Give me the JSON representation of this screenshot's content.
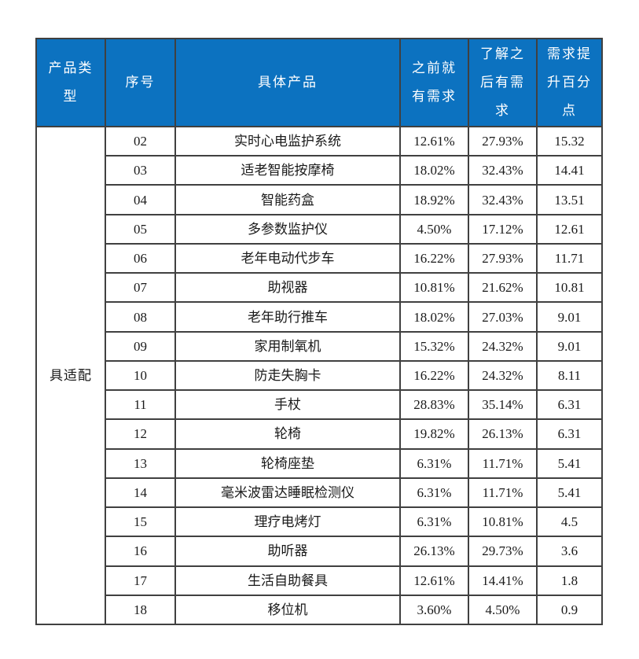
{
  "document": {
    "type": "survey-demand-table",
    "background": "#ffffff"
  },
  "table": {
    "columns": [
      {
        "key": "category",
        "label": "产品类\n型"
      },
      {
        "key": "no",
        "label": "序号"
      },
      {
        "key": "product",
        "label": "具体产品"
      },
      {
        "key": "before",
        "label": "之前就\n有需求"
      },
      {
        "key": "after",
        "label": "了解之\n后有需\n求"
      },
      {
        "key": "lift",
        "label": "需求提\n升百分\n点"
      }
    ],
    "category_label": "具适配",
    "rows": [
      {
        "no": "02",
        "product": "实时心电监护系统",
        "before": "12.61%",
        "after": "27.93%",
        "lift": "15.32"
      },
      {
        "no": "03",
        "product": "适老智能按摩椅",
        "before": "18.02%",
        "after": "32.43%",
        "lift": "14.41"
      },
      {
        "no": "04",
        "product": "智能药盒",
        "before": "18.92%",
        "after": "32.43%",
        "lift": "13.51"
      },
      {
        "no": "05",
        "product": "多参数监护仪",
        "before": "4.50%",
        "after": "17.12%",
        "lift": "12.61"
      },
      {
        "no": "06",
        "product": "老年电动代步车",
        "before": "16.22%",
        "after": "27.93%",
        "lift": "11.71"
      },
      {
        "no": "07",
        "product": "助视器",
        "before": "10.81%",
        "after": "21.62%",
        "lift": "10.81"
      },
      {
        "no": "08",
        "product": "老年助行推车",
        "before": "18.02%",
        "after": "27.03%",
        "lift": "9.01"
      },
      {
        "no": "09",
        "product": "家用制氧机",
        "before": "15.32%",
        "after": "24.32%",
        "lift": "9.01"
      },
      {
        "no": "10",
        "product": "防走失胸卡",
        "before": "16.22%",
        "after": "24.32%",
        "lift": "8.11"
      },
      {
        "no": "11",
        "product": "手杖",
        "before": "28.83%",
        "after": "35.14%",
        "lift": "6.31"
      },
      {
        "no": "12",
        "product": "轮椅",
        "before": "19.82%",
        "after": "26.13%",
        "lift": "6.31"
      },
      {
        "no": "13",
        "product": "轮椅座垫",
        "before": "6.31%",
        "after": "11.71%",
        "lift": "5.41"
      },
      {
        "no": "14",
        "product": "毫米波雷达睡眠检测仪",
        "before": "6.31%",
        "after": "11.71%",
        "lift": "5.41"
      },
      {
        "no": "15",
        "product": "理疗电烤灯",
        "before": "6.31%",
        "after": "10.81%",
        "lift": "4.5"
      },
      {
        "no": "16",
        "product": "助听器",
        "before": "26.13%",
        "after": "29.73%",
        "lift": "3.6"
      },
      {
        "no": "17",
        "product": "生活自助餐具",
        "before": "12.61%",
        "after": "14.41%",
        "lift": "1.8"
      },
      {
        "no": "18",
        "product": "移位机",
        "before": "3.60%",
        "after": "4.50%",
        "lift": "0.9"
      }
    ],
    "colors": {
      "header_bg": "#0C72C0",
      "header_text": "#FFFFFF",
      "border": "#404040",
      "body_text": "#1A1A1A"
    }
  }
}
